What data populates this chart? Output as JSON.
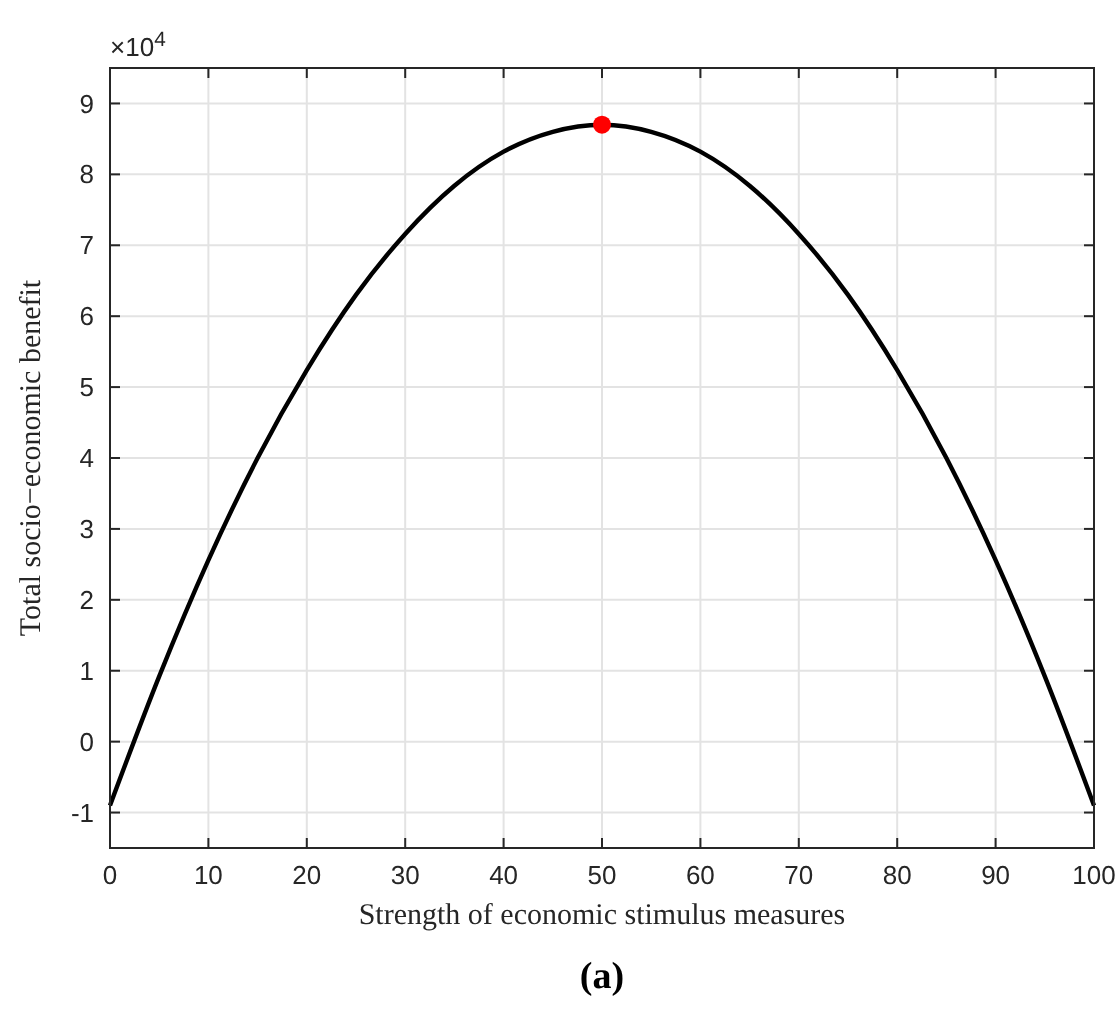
{
  "chart_data": {
    "type": "line",
    "xlabel": "Strength of economic stimulus measures",
    "ylabel": "Total socio−economic benefit",
    "xlim": [
      0,
      100
    ],
    "xticks": [
      0,
      10,
      20,
      30,
      40,
      50,
      60,
      70,
      80,
      90,
      100
    ],
    "ylim": [
      -1.5,
      9.5
    ],
    "yticks": [
      -1,
      0,
      1,
      2,
      3,
      4,
      5,
      6,
      7,
      8,
      9
    ],
    "grid": true,
    "series": [
      {
        "color": "#000000",
        "x": [
          0,
          5,
          10,
          15,
          20,
          25,
          30,
          35,
          40,
          45,
          50,
          55,
          60,
          65,
          70,
          75,
          80,
          85,
          90,
          95,
          100
        ],
        "values": [
          -0.9,
          0.92,
          2.56,
          4.0,
          5.24,
          6.3,
          7.16,
          7.84,
          8.32,
          8.6,
          8.7,
          8.6,
          8.32,
          7.84,
          7.16,
          6.3,
          5.24,
          4.0,
          2.56,
          0.92,
          -0.9
        ]
      },
      {
        "type": "scatter",
        "color": "#ff0000",
        "marker": "circle",
        "x": [
          50
        ],
        "values": [
          8.7
        ]
      }
    ],
    "annotations": [
      "×10$^{4}$",
      "(a)"
    ]
  }
}
